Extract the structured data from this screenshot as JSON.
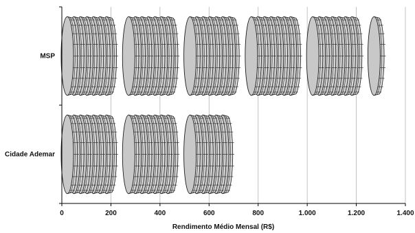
{
  "chart_data": {
    "type": "bar",
    "orientation": "horizontal",
    "style": "pictograph-coin-stacks",
    "categories": [
      "MSP",
      "Cidade Ademar"
    ],
    "values": [
      1325,
      715
    ],
    "xlabel": "Rendimento Médio Mensal (R$)",
    "xlim": [
      0,
      1400
    ],
    "xticks": [
      0,
      200,
      400,
      600,
      800,
      1000,
      1200,
      1400
    ],
    "xtick_labels": [
      "0",
      "200",
      "400",
      "600",
      "800",
      "1.000",
      "1.200",
      "1.400"
    ],
    "grid": "vertical",
    "legend": "none",
    "colors": {
      "coin_face": "#c8c8c8",
      "coin_edge": "#d8d8d8",
      "coin_stroke": "#1a1a1a",
      "gridline": "#b4b4b4",
      "axis": "#000000"
    }
  }
}
